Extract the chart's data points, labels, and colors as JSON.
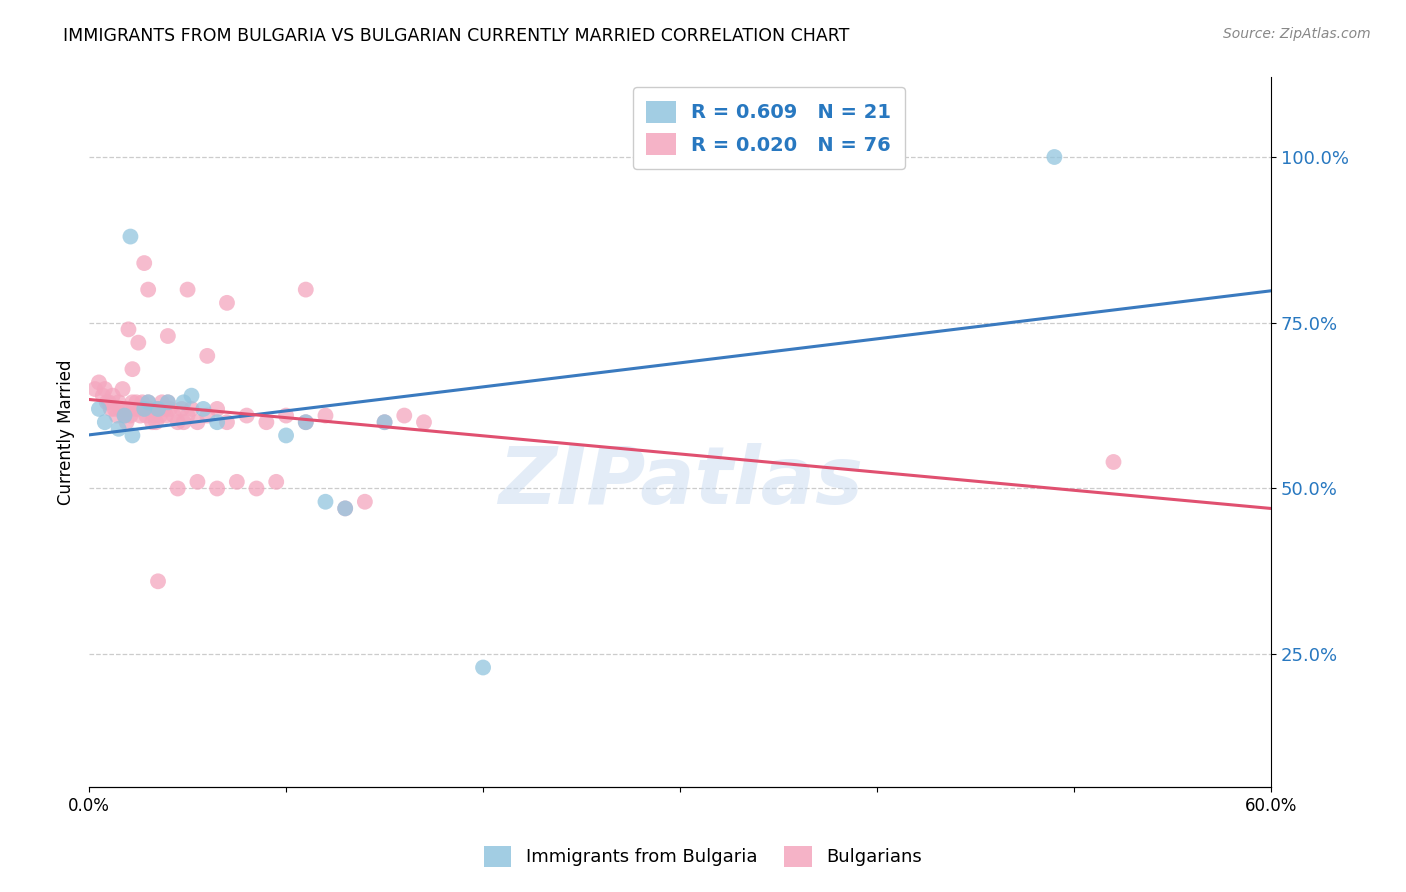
{
  "title": "IMMIGRANTS FROM BULGARIA VS BULGARIAN CURRENTLY MARRIED CORRELATION CHART",
  "source": "Source: ZipAtlas.com",
  "ylabel": "Currently Married",
  "right_ytick_labels": [
    "100.0%",
    "75.0%",
    "50.0%",
    "25.0%"
  ],
  "right_ytick_vals": [
    1.0,
    0.75,
    0.5,
    0.25
  ],
  "xmin": 0.0,
  "xmax": 0.6,
  "ymin": 0.05,
  "ymax": 1.12,
  "legend1_label": "R = 0.609   N = 21",
  "legend2_label": "R = 0.020   N = 76",
  "color_blue": "#92c5de",
  "color_pink": "#f4a6be",
  "line_blue": "#3a7abf",
  "line_pink": "#e05070",
  "watermark": "ZIPatlas",
  "legend_label1": "Immigrants from Bulgaria",
  "legend_label2": "Bulgarians",
  "blue_x": [
    0.021,
    0.028,
    0.035,
    0.04,
    0.048,
    0.052,
    0.058,
    0.065,
    0.1,
    0.11,
    0.12,
    0.13,
    0.15,
    0.005,
    0.008,
    0.015,
    0.018,
    0.022,
    0.49,
    0.2,
    0.03
  ],
  "blue_y": [
    0.88,
    0.62,
    0.62,
    0.63,
    0.63,
    0.64,
    0.62,
    0.6,
    0.58,
    0.6,
    0.48,
    0.47,
    0.6,
    0.62,
    0.6,
    0.59,
    0.61,
    0.58,
    1.0,
    0.23,
    0.63
  ],
  "pink_x": [
    0.003,
    0.005,
    0.007,
    0.008,
    0.009,
    0.01,
    0.011,
    0.012,
    0.013,
    0.014,
    0.015,
    0.016,
    0.017,
    0.018,
    0.019,
    0.02,
    0.021,
    0.022,
    0.023,
    0.024,
    0.025,
    0.026,
    0.027,
    0.028,
    0.029,
    0.03,
    0.031,
    0.032,
    0.033,
    0.034,
    0.035,
    0.036,
    0.037,
    0.038,
    0.039,
    0.04,
    0.041,
    0.043,
    0.045,
    0.047,
    0.048,
    0.05,
    0.052,
    0.055,
    0.06,
    0.065,
    0.07,
    0.08,
    0.09,
    0.1,
    0.11,
    0.12,
    0.13,
    0.14,
    0.15,
    0.16,
    0.17,
    0.025,
    0.02,
    0.04,
    0.06,
    0.035,
    0.03,
    0.05,
    0.07,
    0.045,
    0.055,
    0.065,
    0.075,
    0.085,
    0.095,
    0.11,
    0.52,
    0.035,
    0.028,
    0.022
  ],
  "pink_y": [
    0.65,
    0.66,
    0.64,
    0.65,
    0.63,
    0.63,
    0.62,
    0.64,
    0.62,
    0.61,
    0.63,
    0.62,
    0.65,
    0.61,
    0.6,
    0.62,
    0.61,
    0.63,
    0.62,
    0.63,
    0.62,
    0.61,
    0.63,
    0.62,
    0.61,
    0.63,
    0.62,
    0.6,
    0.61,
    0.6,
    0.62,
    0.61,
    0.63,
    0.62,
    0.61,
    0.63,
    0.62,
    0.61,
    0.6,
    0.62,
    0.6,
    0.61,
    0.62,
    0.6,
    0.61,
    0.62,
    0.6,
    0.61,
    0.6,
    0.61,
    0.6,
    0.61,
    0.47,
    0.48,
    0.6,
    0.61,
    0.6,
    0.72,
    0.74,
    0.73,
    0.7,
    0.62,
    0.8,
    0.8,
    0.78,
    0.5,
    0.51,
    0.5,
    0.51,
    0.5,
    0.51,
    0.8,
    0.54,
    0.36,
    0.84,
    0.68
  ]
}
